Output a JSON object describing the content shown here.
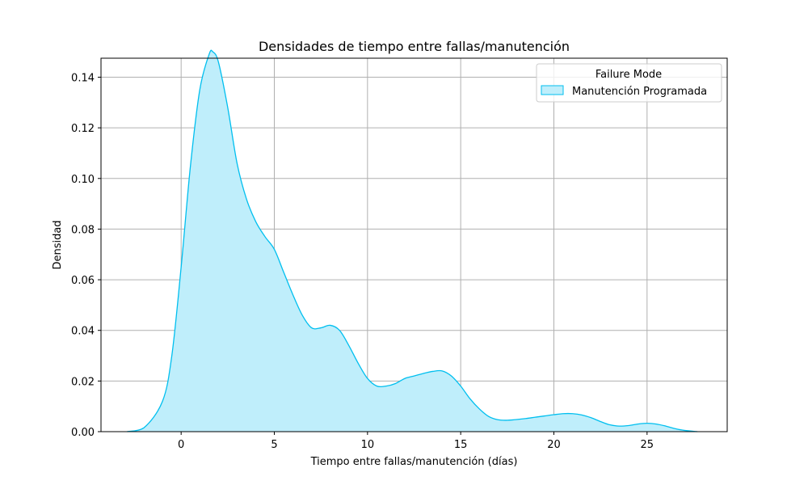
{
  "chart_data": {
    "type": "area",
    "title": "Densidades de tiempo entre fallas/manutención",
    "xlabel": "Tiempo entre fallas/manutención (días)",
    "ylabel": "Densidad",
    "xlim": [
      -4.3,
      29.3
    ],
    "ylim": [
      0,
      0.1475
    ],
    "xticks": [
      0,
      5,
      10,
      15,
      20,
      25
    ],
    "xtick_labels": [
      "0",
      "5",
      "10",
      "15",
      "20",
      "25"
    ],
    "yticks": [
      0.0,
      0.02,
      0.04,
      0.06,
      0.08,
      0.1,
      0.12,
      0.14
    ],
    "ytick_labels": [
      "0.00",
      "0.02",
      "0.04",
      "0.06",
      "0.08",
      "0.10",
      "0.12",
      "0.14"
    ],
    "grid": true,
    "legend": {
      "title": "Failure Mode",
      "position": "top-right",
      "entries": [
        "Manutención Programada"
      ]
    },
    "series": [
      {
        "name": "Manutención Programada",
        "color": "#00bfef",
        "fill": "#bfeefb",
        "x": [
          -2.9,
          -2.0,
          -1.0,
          -0.5,
          0.0,
          0.5,
          1.0,
          1.5,
          1.7,
          2.0,
          2.5,
          3.0,
          3.5,
          4.0,
          4.5,
          5.0,
          5.5,
          6.0,
          6.5,
          7.0,
          7.5,
          8.0,
          8.5,
          9.0,
          9.5,
          10.0,
          10.5,
          11.0,
          11.5,
          12.0,
          12.5,
          13.0,
          13.5,
          14.0,
          14.5,
          15.0,
          15.5,
          16.0,
          16.5,
          17.0,
          17.5,
          18.0,
          18.5,
          19.0,
          19.5,
          20.0,
          20.5,
          21.0,
          21.5,
          22.0,
          22.5,
          23.0,
          23.5,
          24.0,
          24.5,
          25.0,
          25.5,
          26.0,
          26.5,
          27.0,
          27.7
        ],
        "y": [
          0.0,
          0.0015,
          0.012,
          0.03,
          0.065,
          0.105,
          0.135,
          0.149,
          0.15,
          0.146,
          0.128,
          0.106,
          0.092,
          0.083,
          0.077,
          0.072,
          0.063,
          0.054,
          0.046,
          0.041,
          0.041,
          0.042,
          0.04,
          0.034,
          0.027,
          0.021,
          0.018,
          0.018,
          0.019,
          0.021,
          0.022,
          0.023,
          0.0238,
          0.024,
          0.022,
          0.018,
          0.013,
          0.009,
          0.006,
          0.0047,
          0.0045,
          0.0048,
          0.0052,
          0.0057,
          0.0062,
          0.0067,
          0.0071,
          0.0071,
          0.0066,
          0.0055,
          0.004,
          0.0027,
          0.0022,
          0.0024,
          0.003,
          0.0033,
          0.003,
          0.0022,
          0.0012,
          0.0005,
          0.0
        ]
      }
    ]
  }
}
